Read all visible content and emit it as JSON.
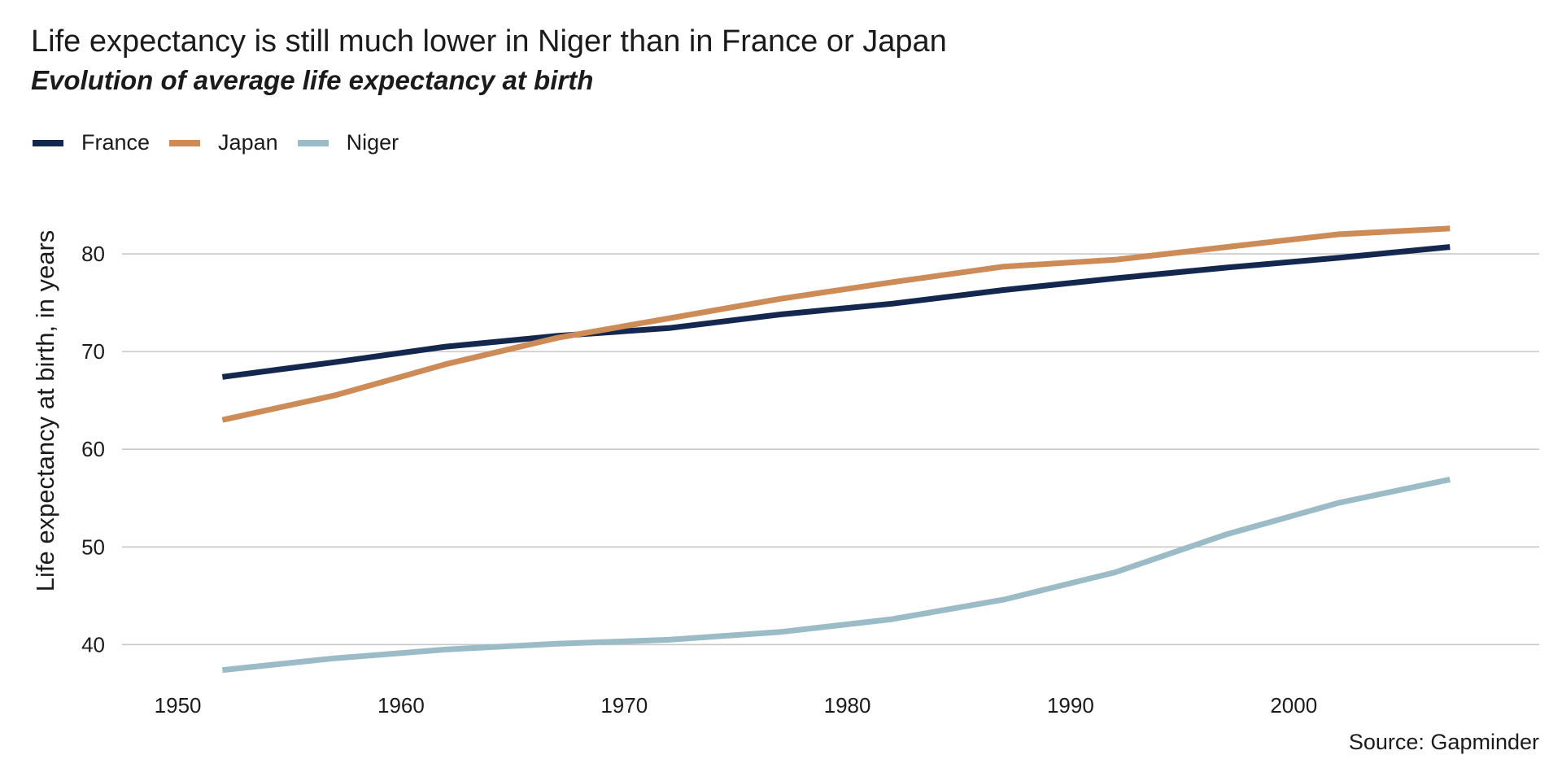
{
  "chart_data": {
    "type": "line",
    "title": "Life expectancy is still much lower in Niger than in France or Japan",
    "subtitle": "Evolution of average life expectancy at birth",
    "xlabel": "",
    "ylabel": "Life expectancy at birth, in years",
    "caption": "Source: Gapminder",
    "xlim": [
      1947.5,
      2011
    ],
    "ylim": [
      35.2,
      86.0
    ],
    "x_ticks": [
      1950,
      1960,
      1970,
      1980,
      1990,
      2000
    ],
    "y_ticks": [
      40,
      50,
      60,
      70,
      80
    ],
    "grid": "horizontal major",
    "legend_position": "top-left",
    "x": [
      1952,
      1957,
      1962,
      1967,
      1972,
      1977,
      1982,
      1987,
      1992,
      1997,
      2002,
      2007
    ],
    "series": [
      {
        "name": "France",
        "color": "#14274e",
        "values": [
          67.4,
          68.9,
          70.5,
          71.6,
          72.4,
          73.8,
          74.9,
          76.3,
          77.5,
          78.6,
          79.6,
          80.7
        ]
      },
      {
        "name": "Japan",
        "color": "#cd8b58",
        "values": [
          63.0,
          65.5,
          68.7,
          71.4,
          73.4,
          75.4,
          77.1,
          78.7,
          79.4,
          80.7,
          82.0,
          82.6
        ]
      },
      {
        "name": "Niger",
        "color": "#9bbcc6",
        "values": [
          37.4,
          38.6,
          39.5,
          40.1,
          40.5,
          41.3,
          42.6,
          44.6,
          47.4,
          51.3,
          54.5,
          56.9
        ]
      }
    ]
  }
}
